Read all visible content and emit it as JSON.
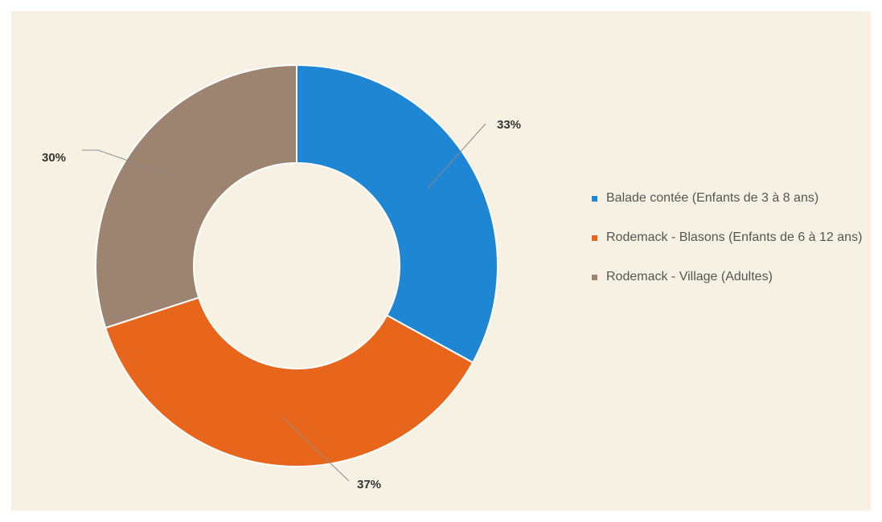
{
  "chart_data": {
    "type": "pie",
    "variant": "donut",
    "title": "",
    "categories": [
      "Balade contée (Enfants de 3 à 8 ans)",
      "Rodemack - Blasons (Enfants de 6 à 12 ans)",
      "Rodemack - Village (Adultes)"
    ],
    "values": [
      33,
      37,
      30
    ],
    "labels": [
      "33%",
      "37%",
      "30%"
    ],
    "unit": "%",
    "colors": [
      "#1f86d3",
      "#e8661c",
      "#9c8470"
    ],
    "legend_position": "right"
  }
}
